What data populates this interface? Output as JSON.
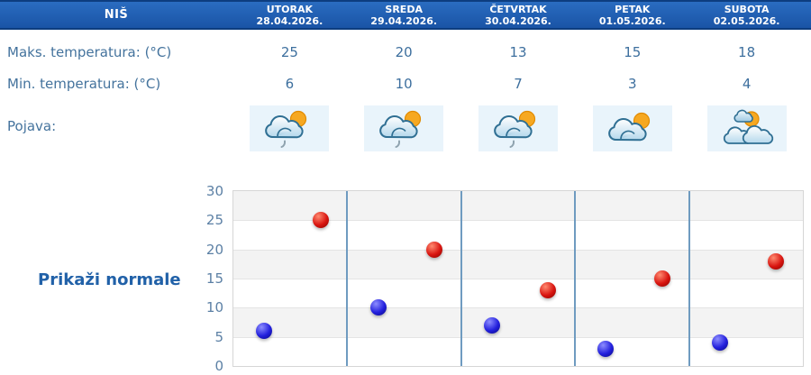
{
  "header": {
    "location": "NIŠ",
    "days": [
      {
        "name": "UTORAK",
        "date": "28.04.2026."
      },
      {
        "name": "SREDA",
        "date": "29.04.2026."
      },
      {
        "name": "ČETVRTAK",
        "date": "30.04.2026."
      },
      {
        "name": "PETAK",
        "date": "01.05.2026."
      },
      {
        "name": "SUBOTA",
        "date": "02.05.2026."
      }
    ]
  },
  "table": {
    "max_label": "Maks. temperatura: (°C)",
    "min_label": "Min. temperatura: (°C)",
    "pojava_label": "Pojava:",
    "max_values": [
      "25",
      "20",
      "13",
      "15",
      "18"
    ],
    "min_values": [
      "6",
      "10",
      "7",
      "3",
      "4"
    ],
    "icons": [
      "sun-cloud-drizzle-icon",
      "sun-cloud-drizzle-icon",
      "sun-cloud-drizzle-icon",
      "sun-cloud-icon",
      "sun-clouds-icon"
    ]
  },
  "chart": {
    "toggle_label": "Prikaži normale"
  },
  "chart_data": {
    "type": "scatter",
    "categories": [
      "28.04.2026.",
      "29.04.2026.",
      "30.04.2026.",
      "01.05.2026.",
      "02.05.2026."
    ],
    "series": [
      {
        "name": "Maks. temperatura (°C)",
        "color": "#cf1211",
        "values": [
          25,
          20,
          13,
          15,
          18
        ]
      },
      {
        "name": "Min. temperatura (°C)",
        "color": "#1c18d9",
        "values": [
          6,
          10,
          7,
          3,
          4
        ]
      }
    ],
    "ylim": [
      0,
      30
    ],
    "ytick_step": 5,
    "grid": "horizontal-bands",
    "legend": "none"
  },
  "colors": {
    "header_bg": "#1e5bb0",
    "header_border": "#0d3d7f",
    "table_text": "#44739d",
    "accent_link": "#2161a8",
    "icon_box_bg": "#e9f4fb",
    "separator": "#6f9bc0",
    "band_gray": "#f3f3f3",
    "dot_red": "#cf1211",
    "dot_blue": "#1c18d9"
  }
}
